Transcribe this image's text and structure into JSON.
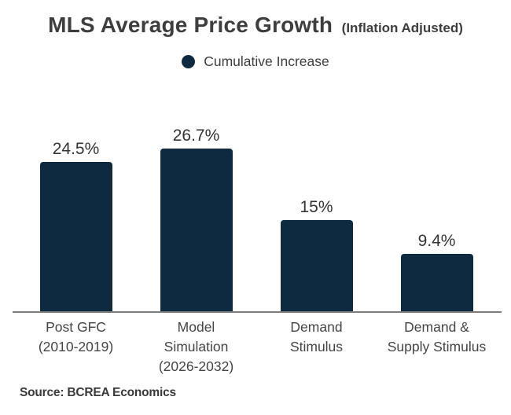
{
  "header": {
    "title": "MLS Average Price Growth",
    "subtitle": "(Inflation Adjusted)"
  },
  "legend": {
    "label": "Cumulative Increase",
    "marker_color": "#0e2a41"
  },
  "chart_data": {
    "type": "bar",
    "title": "MLS Average Price Growth (Inflation Adjusted)",
    "series_name": "Cumulative Increase",
    "categories": [
      "Post GFC\n(2010-2019)",
      "Model\nSimulation\n(2026-2032)",
      "Demand\nStimulus",
      "Demand &\nSupply Stimulus"
    ],
    "values": [
      24.5,
      26.7,
      15,
      9.4
    ],
    "value_labels": [
      "24.5%",
      "26.7%",
      "15%",
      "9.4%"
    ],
    "unit": "%",
    "xlabel": "",
    "ylabel": "",
    "ylim": [
      0,
      30
    ],
    "grid": false,
    "legend_position": "top",
    "bar_color": "#0e2a41",
    "axis_color": "#7f7f7f"
  },
  "footer": {
    "source": "Source: BCREA Economics"
  }
}
